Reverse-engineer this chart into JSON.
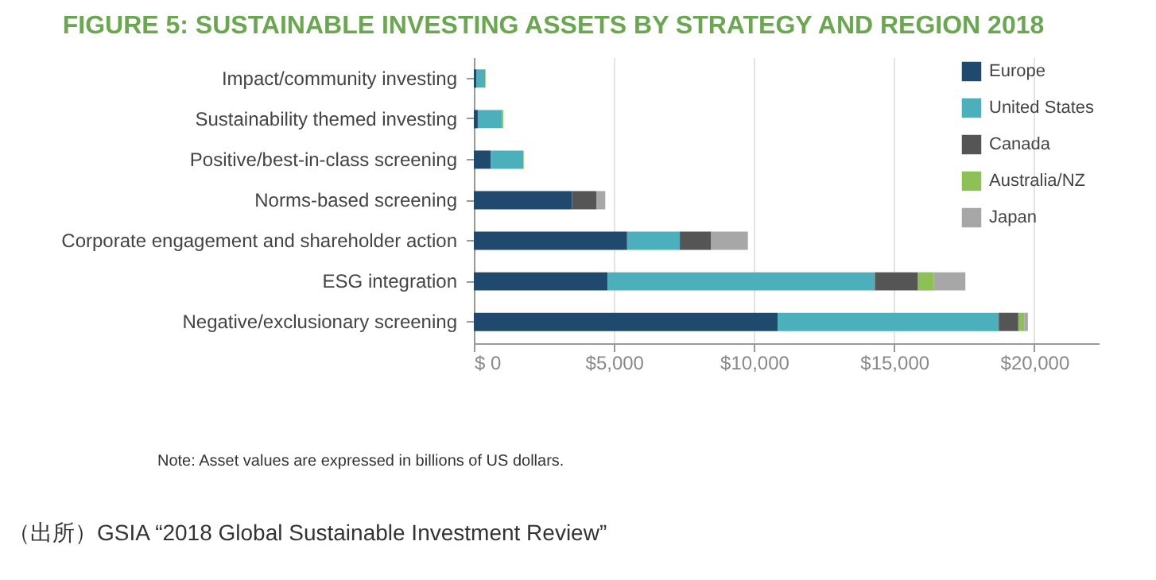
{
  "chart_data": {
    "type": "bar",
    "orientation": "horizontal",
    "stacked": true,
    "title": "FIGURE 5: SUSTAINABLE INVESTING ASSETS BY STRATEGY AND REGION 2018",
    "categories": [
      "Impact/community investing",
      "Sustainability themed investing",
      "Positive/best-in-class screening",
      "Norms-based screening",
      "Corporate engagement and shareholder action",
      "ESG integration",
      "Negative/exclusionary screening"
    ],
    "series": [
      {
        "name": "Europe",
        "color": "#1f4a6e",
        "values": [
          100,
          140,
          600,
          3500,
          5470,
          4770,
          10840
        ]
      },
      {
        "name": "United States",
        "color": "#4bb0bb",
        "values": [
          300,
          860,
          1160,
          null,
          1880,
          9540,
          7890
        ]
      },
      {
        "name": "Canada",
        "color": "#555555",
        "values": [
          null,
          null,
          null,
          870,
          1120,
          1540,
          700
        ]
      },
      {
        "name": "Australia/NZ",
        "color": "#8dc155",
        "values": [
          20,
          50,
          20,
          null,
          null,
          570,
          210
        ]
      },
      {
        "name": "Japan",
        "color": "#a7a7a7",
        "values": [
          null,
          null,
          null,
          320,
          1310,
          1120,
          130
        ]
      }
    ],
    "xlim": [
      0,
      22300
    ],
    "xticks": [
      {
        "value": 0,
        "label": "$ 0"
      },
      {
        "value": 5000,
        "label": "$5,000"
      },
      {
        "value": 10000,
        "label": "$10,000"
      },
      {
        "value": 15000,
        "label": "$15,000"
      },
      {
        "value": 20000,
        "label": "$20,000"
      }
    ],
    "grid": "x",
    "legend": "top right",
    "annotations": [
      "Note: Asset values are expressed in billions of US dollars.",
      "（出所）GSIA “2018 Global Sustainable Investment Review”"
    ]
  }
}
